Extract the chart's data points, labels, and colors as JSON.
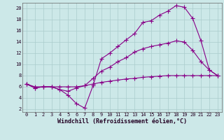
{
  "background_color": "#cce8e8",
  "grid_color": "#aacccc",
  "line_color": "#880088",
  "marker": "+",
  "markersize": 4,
  "linewidth": 0.8,
  "xlabel": "Windchill (Refroidissement éolien,°C)",
  "xlabel_fontsize": 6,
  "tick_fontsize": 5,
  "xlim": [
    -0.5,
    23.5
  ],
  "ylim": [
    1.5,
    21
  ],
  "yticks": [
    2,
    4,
    6,
    8,
    10,
    12,
    14,
    16,
    18,
    20
  ],
  "xticks": [
    0,
    1,
    2,
    3,
    4,
    5,
    6,
    7,
    8,
    9,
    10,
    11,
    12,
    13,
    14,
    15,
    16,
    17,
    18,
    19,
    20,
    21,
    22,
    23
  ],
  "series": [
    {
      "x": [
        0,
        1,
        2,
        3,
        4,
        5,
        6,
        7,
        8,
        9,
        10,
        11,
        12,
        13,
        14,
        15,
        16,
        17,
        18,
        19,
        20,
        21,
        22,
        23
      ],
      "y": [
        6.5,
        5.8,
        6.0,
        6.0,
        5.5,
        4.5,
        3.0,
        2.2,
        6.2,
        11.0,
        12.0,
        13.2,
        14.4,
        15.5,
        17.5,
        17.8,
        18.8,
        19.5,
        20.5,
        20.2,
        18.2,
        14.2,
        9.0,
        8.0
      ]
    },
    {
      "x": [
        0,
        1,
        2,
        3,
        4,
        5,
        6,
        7,
        8,
        9,
        10,
        11,
        12,
        13,
        14,
        15,
        16,
        17,
        18,
        19,
        20,
        21,
        22,
        23
      ],
      "y": [
        6.5,
        5.8,
        6.0,
        6.0,
        5.5,
        5.2,
        5.8,
        6.2,
        7.5,
        8.8,
        9.5,
        10.5,
        11.2,
        12.2,
        12.8,
        13.2,
        13.5,
        13.8,
        14.2,
        14.0,
        12.5,
        10.5,
        9.0,
        8.0
      ]
    },
    {
      "x": [
        0,
        1,
        2,
        3,
        4,
        5,
        6,
        7,
        8,
        9,
        10,
        11,
        12,
        13,
        14,
        15,
        16,
        17,
        18,
        19,
        20,
        21,
        22,
        23
      ],
      "y": [
        6.5,
        6.0,
        6.0,
        6.0,
        6.0,
        6.0,
        6.0,
        6.2,
        6.5,
        6.8,
        7.0,
        7.2,
        7.4,
        7.5,
        7.7,
        7.8,
        7.9,
        8.0,
        8.0,
        8.0,
        8.0,
        8.0,
        8.0,
        8.0
      ]
    }
  ]
}
